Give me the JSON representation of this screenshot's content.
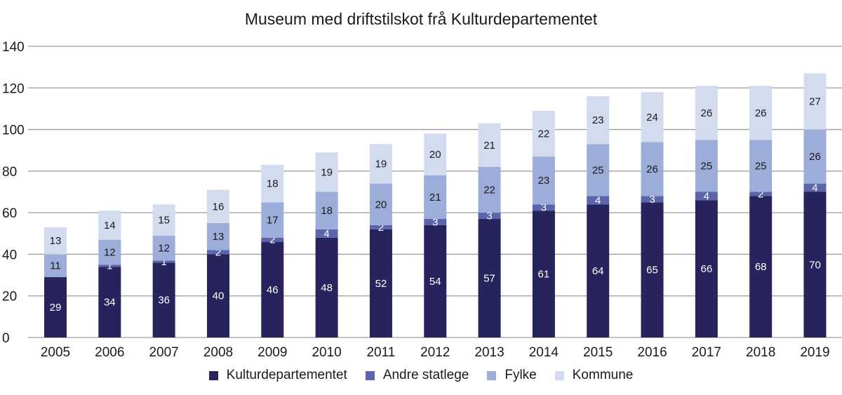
{
  "chart_data": {
    "type": "bar",
    "stacked": true,
    "title": "Museum med driftstilskot frå Kulturdepartementet",
    "xlabel": "",
    "ylabel": "",
    "ylim": [
      0,
      140
    ],
    "yticks": [
      0,
      20,
      40,
      60,
      80,
      100,
      120,
      140
    ],
    "grid": true,
    "legend_position": "bottom",
    "categories": [
      "2005",
      "2006",
      "2007",
      "2008",
      "2009",
      "2010",
      "2011",
      "2012",
      "2013",
      "2014",
      "2015",
      "2016",
      "2017",
      "2018",
      "2019"
    ],
    "series": [
      {
        "name": "Kulturdepartementet",
        "color": "#26235d",
        "label_color": "#ffffff",
        "values": [
          29,
          34,
          36,
          40,
          46,
          48,
          52,
          54,
          57,
          61,
          64,
          65,
          66,
          68,
          70
        ]
      },
      {
        "name": "Andre statlege",
        "color": "#5c65ab",
        "label_color": "#ffffff",
        "values": [
          0,
          1,
          1,
          2,
          2,
          4,
          2,
          3,
          3,
          3,
          4,
          3,
          4,
          2,
          4
        ]
      },
      {
        "name": "Fylke",
        "color": "#9badd8",
        "label_color": "#1a1a1a",
        "values": [
          11,
          12,
          12,
          13,
          17,
          18,
          20,
          21,
          22,
          23,
          25,
          26,
          25,
          25,
          26
        ]
      },
      {
        "name": "Kommune",
        "color": "#d3dbef",
        "label_color": "#1a1a1a",
        "values": [
          13,
          14,
          15,
          16,
          18,
          19,
          19,
          20,
          21,
          22,
          23,
          24,
          26,
          26,
          27
        ]
      }
    ]
  },
  "colors": {
    "gridline": "#9a9a9a",
    "axis": "#9a9a9a"
  }
}
